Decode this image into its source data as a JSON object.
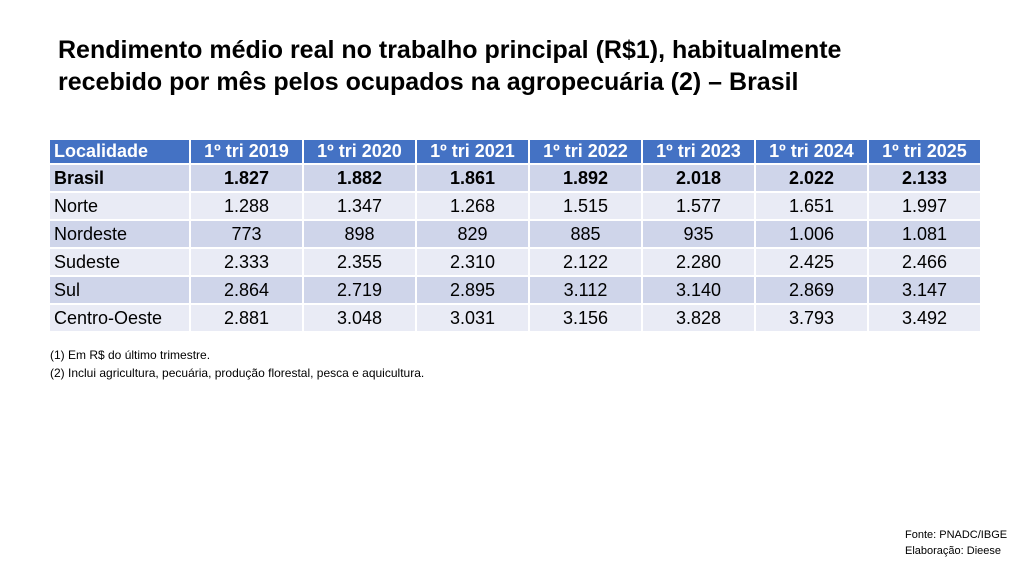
{
  "title_lines": [
    "Rendimento médio real no trabalho principal (R$1), habitualmente",
    "recebido por mês pelos ocupados na agropecuária (2) – Brasil"
  ],
  "chart_data": {
    "type": "table",
    "columns": [
      "Localidade",
      "1º tri 2019",
      "1º tri 2020",
      "1º tri 2021",
      "1º tri 2022",
      "1º tri 2023",
      "1º tri 2024",
      "1º tri 2025"
    ],
    "rows": [
      {
        "label": "Brasil",
        "bold": true,
        "values": [
          "1.827",
          "1.882",
          "1.861",
          "1.892",
          "2.018",
          "2.022",
          "2.133"
        ]
      },
      {
        "label": "Norte",
        "bold": false,
        "values": [
          "1.288",
          "1.347",
          "1.268",
          "1.515",
          "1.577",
          "1.651",
          "1.997"
        ]
      },
      {
        "label": "Nordeste",
        "bold": false,
        "values": [
          "773",
          "898",
          "829",
          "885",
          "935",
          "1.006",
          "1.081"
        ]
      },
      {
        "label": "Sudeste",
        "bold": false,
        "values": [
          "2.333",
          "2.355",
          "2.310",
          "2.122",
          "2.280",
          "2.425",
          "2.466"
        ]
      },
      {
        "label": "Sul",
        "bold": false,
        "values": [
          "2.864",
          "2.719",
          "2.895",
          "3.112",
          "3.140",
          "2.869",
          "3.147"
        ]
      },
      {
        "label": "Centro-Oeste",
        "bold": false,
        "values": [
          "2.881",
          "3.048",
          "3.031",
          "3.156",
          "3.828",
          "3.793",
          "3.492"
        ]
      }
    ]
  },
  "notes": [
    "(1) Em R$ do último trimestre.",
    "(2) Inclui agricultura, pecuária, produção florestal, pesca e aquicultura."
  ],
  "source": {
    "fonte": "Fonte: PNADC/IBGE",
    "elaboracao": "Elaboração: Dieese"
  },
  "colors": {
    "header_bg": "#4472c4",
    "row_odd": "#cfd5ea",
    "row_even": "#e9ebf5"
  }
}
